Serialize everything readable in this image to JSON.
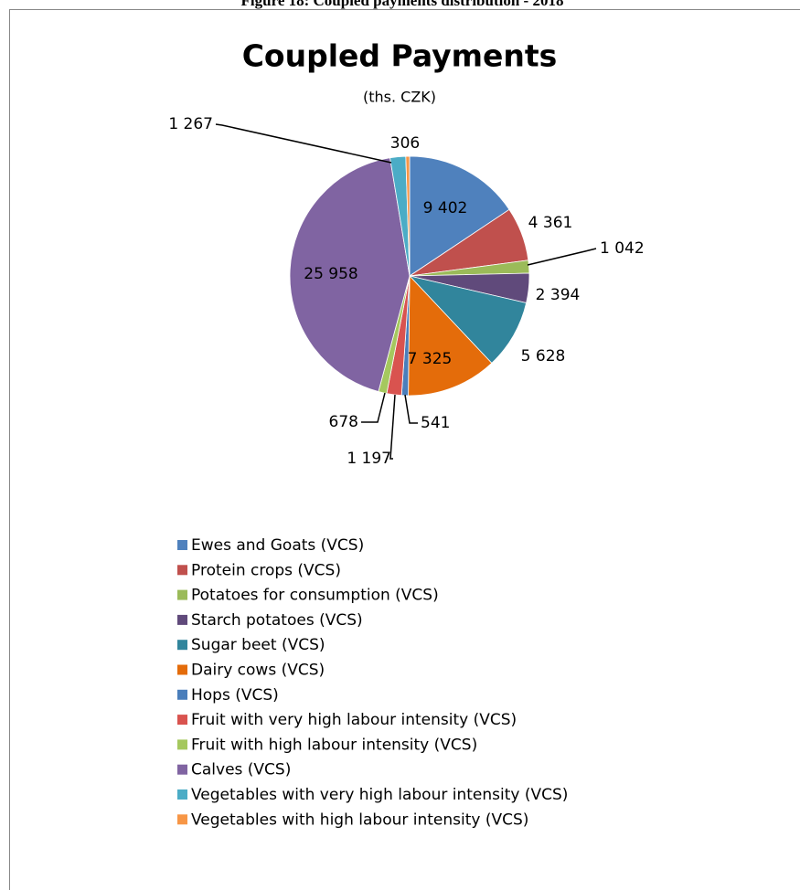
{
  "caption": "Figure 18: Coupled payments distribution - 2018",
  "chart_data": {
    "type": "pie",
    "title": "Coupled Payments",
    "subtitle": "(ths. CZK)",
    "categories": [
      "Ewes and Goats (VCS)",
      "Protein crops (VCS)",
      "Potatoes for consumption (VCS)",
      "Starch potatoes (VCS)",
      "Sugar beet (VCS)",
      "Dairy cows (VCS)",
      "Hops (VCS)",
      "Fruit with very high labour intensity (VCS)",
      "Fruit with high labour intensity (VCS)",
      "Calves (VCS)",
      "Vegetables with very high labour intensity (VCS)",
      "Vegetables with high labour intensity (VCS)"
    ],
    "values": [
      9402,
      4361,
      1042,
      2394,
      5628,
      7325,
      541,
      1197,
      678,
      25958,
      1267,
      306
    ],
    "value_labels": [
      "9 402",
      "4 361",
      "1 042",
      "2 394",
      "5 628",
      "7 325",
      "541",
      "1 197",
      "678",
      "25 958",
      "1 267",
      "306"
    ],
    "colors": [
      "#4F81BD",
      "#C0504D",
      "#9BBB59",
      "#604A7B",
      "#31859C",
      "#E46C0A",
      "#4A7EBB",
      "#D9534F",
      "#A5C85E",
      "#8064A2",
      "#4BACC6",
      "#F79646"
    ],
    "legend": "bottom"
  }
}
